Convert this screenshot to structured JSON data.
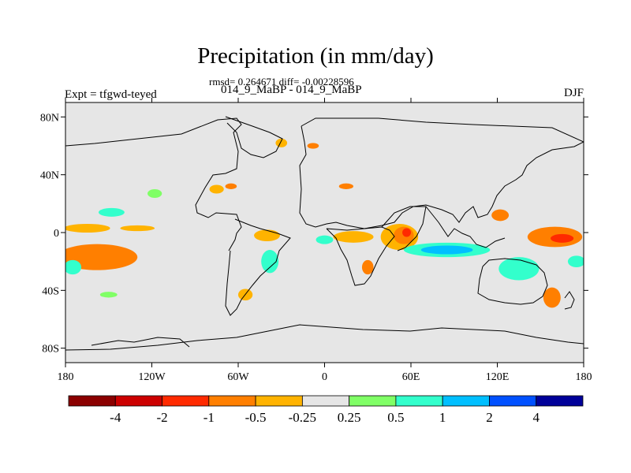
{
  "chart_data": {
    "type": "heatmap",
    "title": "Precipitation (in mm/day)",
    "stats_text": "rmsd= 0.264671 diff= -0.00228596",
    "subtitle": "014_9_MaBP - 014_9_MaBP",
    "left_label": "Expt = tfgwd-teyed",
    "right_label": "DJF",
    "xlim": [
      -180,
      180
    ],
    "ylim": [
      -90,
      90
    ],
    "x_ticks": [
      {
        "value": -180,
        "label": "180"
      },
      {
        "value": -120,
        "label": "120W"
      },
      {
        "value": -60,
        "label": "60W"
      },
      {
        "value": 0,
        "label": "0"
      },
      {
        "value": 60,
        "label": "60E"
      },
      {
        "value": 120,
        "label": "120E"
      },
      {
        "value": 180,
        "label": "180"
      }
    ],
    "y_ticks": [
      {
        "value": 80,
        "label": "80N"
      },
      {
        "value": 40,
        "label": "40N"
      },
      {
        "value": 0,
        "label": "0"
      },
      {
        "value": -40,
        "label": "40S"
      },
      {
        "value": -80,
        "label": "80S"
      }
    ],
    "colorbar": {
      "colors": [
        "#8b0000",
        "#cc0000",
        "#ff2a00",
        "#ff7f00",
        "#ffb300",
        "#e6e6e6",
        "#80ff66",
        "#33ffcc",
        "#00bfff",
        "#0050ff",
        "#000099"
      ],
      "labels": [
        "-4",
        "-2",
        "-1",
        "-0.5",
        "-0.25",
        "0.25",
        "0.5",
        "1",
        "2",
        "4"
      ]
    },
    "anomalies": [
      {
        "lon": -155,
        "lat": -18,
        "rx": 14,
        "ry": 6,
        "level": 2
      },
      {
        "lon": -158,
        "lat": -17,
        "rx": 28,
        "ry": 9,
        "level": 3
      },
      {
        "lon": -165,
        "lat": 3,
        "rx": 16,
        "ry": 3,
        "level": 4
      },
      {
        "lon": -130,
        "lat": 3,
        "rx": 12,
        "ry": 2,
        "level": 4
      },
      {
        "lon": -148,
        "lat": 14,
        "rx": 9,
        "ry": 3,
        "level": 7
      },
      {
        "lon": -175,
        "lat": -24,
        "rx": 6,
        "ry": 5,
        "level": 7
      },
      {
        "lon": -150,
        "lat": -43,
        "rx": 6,
        "ry": 2,
        "level": 6
      },
      {
        "lon": -118,
        "lat": 27,
        "rx": 5,
        "ry": 3,
        "level": 6
      },
      {
        "lon": -75,
        "lat": 30,
        "rx": 5,
        "ry": 3,
        "level": 4
      },
      {
        "lon": -65,
        "lat": 32,
        "rx": 4,
        "ry": 2,
        "level": 3
      },
      {
        "lon": -55,
        "lat": -43,
        "rx": 5,
        "ry": 4,
        "level": 4
      },
      {
        "lon": -40,
        "lat": -2,
        "rx": 9,
        "ry": 4,
        "level": 4
      },
      {
        "lon": -38,
        "lat": -20,
        "rx": 6,
        "ry": 8,
        "level": 7
      },
      {
        "lon": -30,
        "lat": 62,
        "rx": 4,
        "ry": 3,
        "level": 4
      },
      {
        "lon": -8,
        "lat": 60,
        "rx": 4,
        "ry": 2,
        "level": 3
      },
      {
        "lon": 0,
        "lat": -5,
        "rx": 6,
        "ry": 3,
        "level": 7
      },
      {
        "lon": 15,
        "lat": 32,
        "rx": 5,
        "ry": 2,
        "level": 3
      },
      {
        "lon": 20,
        "lat": -3,
        "rx": 14,
        "ry": 4,
        "level": 4
      },
      {
        "lon": 30,
        "lat": -24,
        "rx": 4,
        "ry": 5,
        "level": 3
      },
      {
        "lon": 52,
        "lat": -3,
        "rx": 13,
        "ry": 9,
        "level": 4
      },
      {
        "lon": 55,
        "lat": -2,
        "rx": 7,
        "ry": 6,
        "level": 3
      },
      {
        "lon": 57,
        "lat": 0,
        "rx": 3,
        "ry": 3,
        "level": 2
      },
      {
        "lon": 85,
        "lat": -12,
        "rx": 30,
        "ry": 5,
        "level": 7
      },
      {
        "lon": 85,
        "lat": -12,
        "rx": 18,
        "ry": 3,
        "level": 8
      },
      {
        "lon": 135,
        "lat": -25,
        "rx": 14,
        "ry": 8,
        "level": 7
      },
      {
        "lon": 160,
        "lat": -3,
        "rx": 19,
        "ry": 7,
        "level": 3
      },
      {
        "lon": 165,
        "lat": -4,
        "rx": 8,
        "ry": 3,
        "level": 2
      },
      {
        "lon": 122,
        "lat": 12,
        "rx": 6,
        "ry": 4,
        "level": 3
      },
      {
        "lon": 158,
        "lat": -45,
        "rx": 6,
        "ry": 7,
        "level": 3
      },
      {
        "lon": 175,
        "lat": -20,
        "rx": 6,
        "ry": 4,
        "level": 7
      }
    ]
  }
}
